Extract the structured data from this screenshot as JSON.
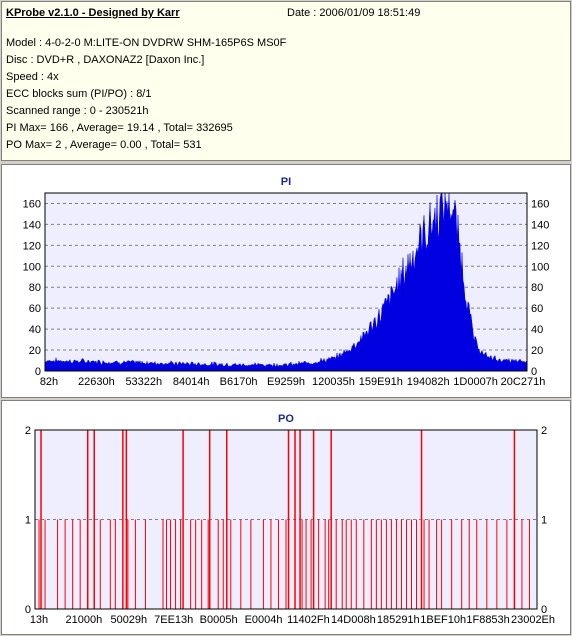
{
  "info": {
    "title": "KProbe v2.1.0 - Designed by Karr",
    "date": "Date : 2006/01/09 18:51:49",
    "lines": [
      "Model : 4-0-2-0 M:LITE-ON DVDRW SHM-165P6S MS0F",
      "Disc : DVD+R , DAXONAZ2 [Daxon Inc.]",
      "Speed : 4x",
      "ECC blocks sum (PI/PO) : 8/1",
      "Scanned range : 0 - 230521h",
      "PI Max= 166 , Average= 19.14 , Total= 332695",
      "PO Max= 2 , Average= 0.00 , Total= 531"
    ]
  },
  "colors": {
    "pi_fill": "#0000e0",
    "po_line": "#ff0000",
    "plot_bg": "#eeeeff",
    "grid": "#808080",
    "title": "#1a2a8c"
  },
  "chart_data": [
    {
      "type": "area",
      "title": "PI",
      "ylim": [
        0,
        170
      ],
      "yticks": [
        0,
        20,
        40,
        60,
        80,
        100,
        120,
        140,
        160
      ],
      "xlim": [
        0,
        230521
      ],
      "xtick_labels": [
        "82h",
        "22630h",
        "53322h",
        "84014h",
        "B6170h",
        "E9259h",
        "120035h",
        "159E91h",
        "194082h",
        "1D0007h",
        "20C271h"
      ],
      "grid": true,
      "series_profile": {
        "x_fraction": [
          0,
          0.1,
          0.2,
          0.3,
          0.4,
          0.5,
          0.55,
          0.6,
          0.63,
          0.66,
          0.69,
          0.72,
          0.74,
          0.76,
          0.78,
          0.8,
          0.82,
          0.835,
          0.845,
          0.86,
          0.875,
          0.89,
          0.91,
          0.95,
          1.0
        ],
        "y": [
          10,
          9,
          8,
          7,
          6,
          6,
          8,
          12,
          20,
          33,
          50,
          72,
          90,
          108,
          125,
          140,
          155,
          166,
          158,
          120,
          70,
          30,
          15,
          10,
          9
        ]
      }
    },
    {
      "type": "bar",
      "title": "PO",
      "ylim": [
        0,
        2
      ],
      "yticks": [
        0,
        1,
        2
      ],
      "xlim": [
        0,
        230521
      ],
      "xtick_labels": [
        "13h",
        "21000h",
        "50029h",
        "7EE13h",
        "B0005h",
        "E0004h",
        "11402Fh",
        "14D008h",
        "185291h",
        "1BEF10h",
        "1F8853h",
        "23002Eh"
      ],
      "grid": true,
      "spikes_2_x_fraction": [
        0.012,
        0.105,
        0.118,
        0.175,
        0.182,
        0.295,
        0.348,
        0.382,
        0.505,
        0.518,
        0.528,
        0.555,
        0.59,
        0.77,
        0.955
      ],
      "spikes_1_x_fraction": [
        0.008,
        0.02,
        0.045,
        0.06,
        0.075,
        0.09,
        0.13,
        0.15,
        0.16,
        0.185,
        0.2,
        0.22,
        0.255,
        0.262,
        0.27,
        0.28,
        0.29,
        0.31,
        0.32,
        0.332,
        0.345,
        0.365,
        0.375,
        0.39,
        0.41,
        0.43,
        0.455,
        0.47,
        0.485,
        0.5,
        0.532,
        0.54,
        0.55,
        0.565,
        0.578,
        0.585,
        0.6,
        0.612,
        0.62,
        0.63,
        0.64,
        0.655,
        0.67,
        0.68,
        0.69,
        0.7,
        0.71,
        0.72,
        0.73,
        0.74,
        0.75,
        0.76,
        0.775,
        0.785,
        0.8,
        0.81,
        0.83,
        0.85,
        0.865,
        0.88,
        0.9,
        0.92,
        0.94,
        0.97,
        0.985
      ]
    }
  ]
}
